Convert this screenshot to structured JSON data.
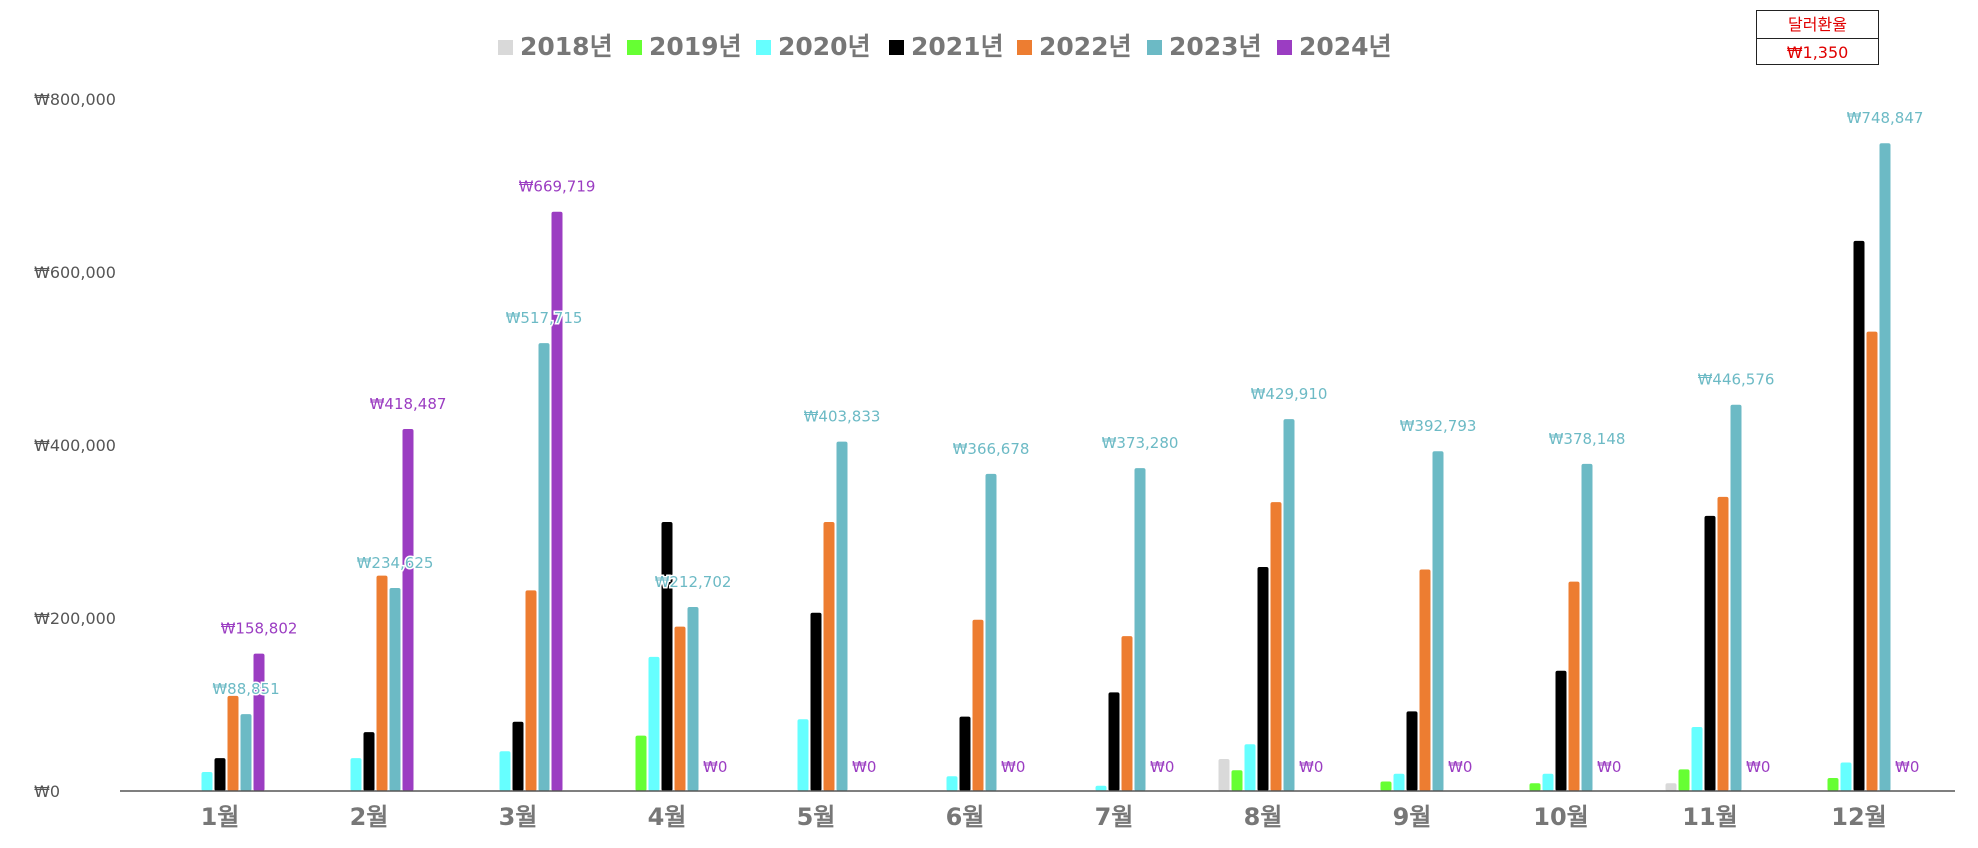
{
  "chart_data": {
    "type": "bar",
    "title": "",
    "xlabel": "",
    "ylabel": "",
    "categories": [
      "1월",
      "2월",
      "3월",
      "4월",
      "5월",
      "6월",
      "7월",
      "8월",
      "9월",
      "10월",
      "11월",
      "12월"
    ],
    "ylim": [
      0,
      800000
    ],
    "yticks": [
      0,
      200000,
      400000,
      600000,
      800000
    ],
    "ytick_labels": [
      "₩0",
      "₩200,000",
      "₩400,000",
      "₩600,000",
      "₩800,000"
    ],
    "grid": false,
    "legend_position": "top-center",
    "series": [
      {
        "name": "2018년",
        "color": "#d9d9d9",
        "values": [
          0,
          0,
          0,
          0,
          0,
          0,
          0,
          37000,
          0,
          0,
          9000,
          0
        ]
      },
      {
        "name": "2019년",
        "color": "#66ff33",
        "values": [
          0,
          0,
          0,
          64000,
          0,
          0,
          0,
          24000,
          11000,
          9000,
          25000,
          15000
        ]
      },
      {
        "name": "2020년",
        "color": "#66ffff",
        "values": [
          22000,
          38000,
          46000,
          155000,
          83000,
          17000,
          6000,
          54000,
          20000,
          20000,
          74000,
          33000
        ]
      },
      {
        "name": "2021년",
        "color": "#000000",
        "values": [
          38000,
          68000,
          80000,
          311000,
          206000,
          86000,
          114000,
          259000,
          92000,
          139000,
          318000,
          636000
        ]
      },
      {
        "name": "2022년",
        "color": "#ed7d31",
        "values": [
          110000,
          249000,
          232000,
          190000,
          311000,
          198000,
          179000,
          334000,
          256000,
          242000,
          340000,
          531000
        ]
      },
      {
        "name": "2023년",
        "color": "#6cbac5",
        "values": [
          88851,
          234625,
          517715,
          212702,
          403833,
          366678,
          373280,
          429910,
          392793,
          378148,
          446576,
          748847
        ]
      },
      {
        "name": "2024년",
        "color": "#9b3dc2",
        "values": [
          158802,
          418487,
          669719,
          0,
          0,
          0,
          0,
          0,
          0,
          0,
          0,
          0
        ]
      }
    ],
    "data_labels": [
      {
        "series": 5,
        "category": 0,
        "text": "₩88,851"
      },
      {
        "series": 6,
        "category": 0,
        "text": "₩158,802"
      },
      {
        "series": 5,
        "category": 1,
        "text": "₩234,625"
      },
      {
        "series": 6,
        "category": 1,
        "text": "₩418,487"
      },
      {
        "series": 5,
        "category": 2,
        "text": "₩517,715"
      },
      {
        "series": 6,
        "category": 2,
        "text": "₩669,719"
      },
      {
        "series": 5,
        "category": 3,
        "text": "₩212,702"
      },
      {
        "series": 6,
        "category": 3,
        "text": "₩0"
      },
      {
        "series": 5,
        "category": 4,
        "text": "₩403,833"
      },
      {
        "series": 6,
        "category": 4,
        "text": "₩0"
      },
      {
        "series": 5,
        "category": 5,
        "text": "₩366,678"
      },
      {
        "series": 6,
        "category": 5,
        "text": "₩0"
      },
      {
        "series": 5,
        "category": 6,
        "text": "₩373,280"
      },
      {
        "series": 6,
        "category": 6,
        "text": "₩0"
      },
      {
        "series": 5,
        "category": 7,
        "text": "₩429,910"
      },
      {
        "series": 6,
        "category": 7,
        "text": "₩0"
      },
      {
        "series": 5,
        "category": 8,
        "text": "₩392,793"
      },
      {
        "series": 6,
        "category": 8,
        "text": "₩0"
      },
      {
        "series": 5,
        "category": 9,
        "text": "₩378,148"
      },
      {
        "series": 6,
        "category": 9,
        "text": "₩0"
      },
      {
        "series": 5,
        "category": 10,
        "text": "₩446,576"
      },
      {
        "series": 6,
        "category": 10,
        "text": "₩0"
      },
      {
        "series": 5,
        "category": 11,
        "text": "₩748,847"
      },
      {
        "series": 6,
        "category": 11,
        "text": "₩0"
      }
    ]
  },
  "exchange_rate_box": {
    "label": "달러환율",
    "value": "₩1,350",
    "color": "#e00000"
  }
}
